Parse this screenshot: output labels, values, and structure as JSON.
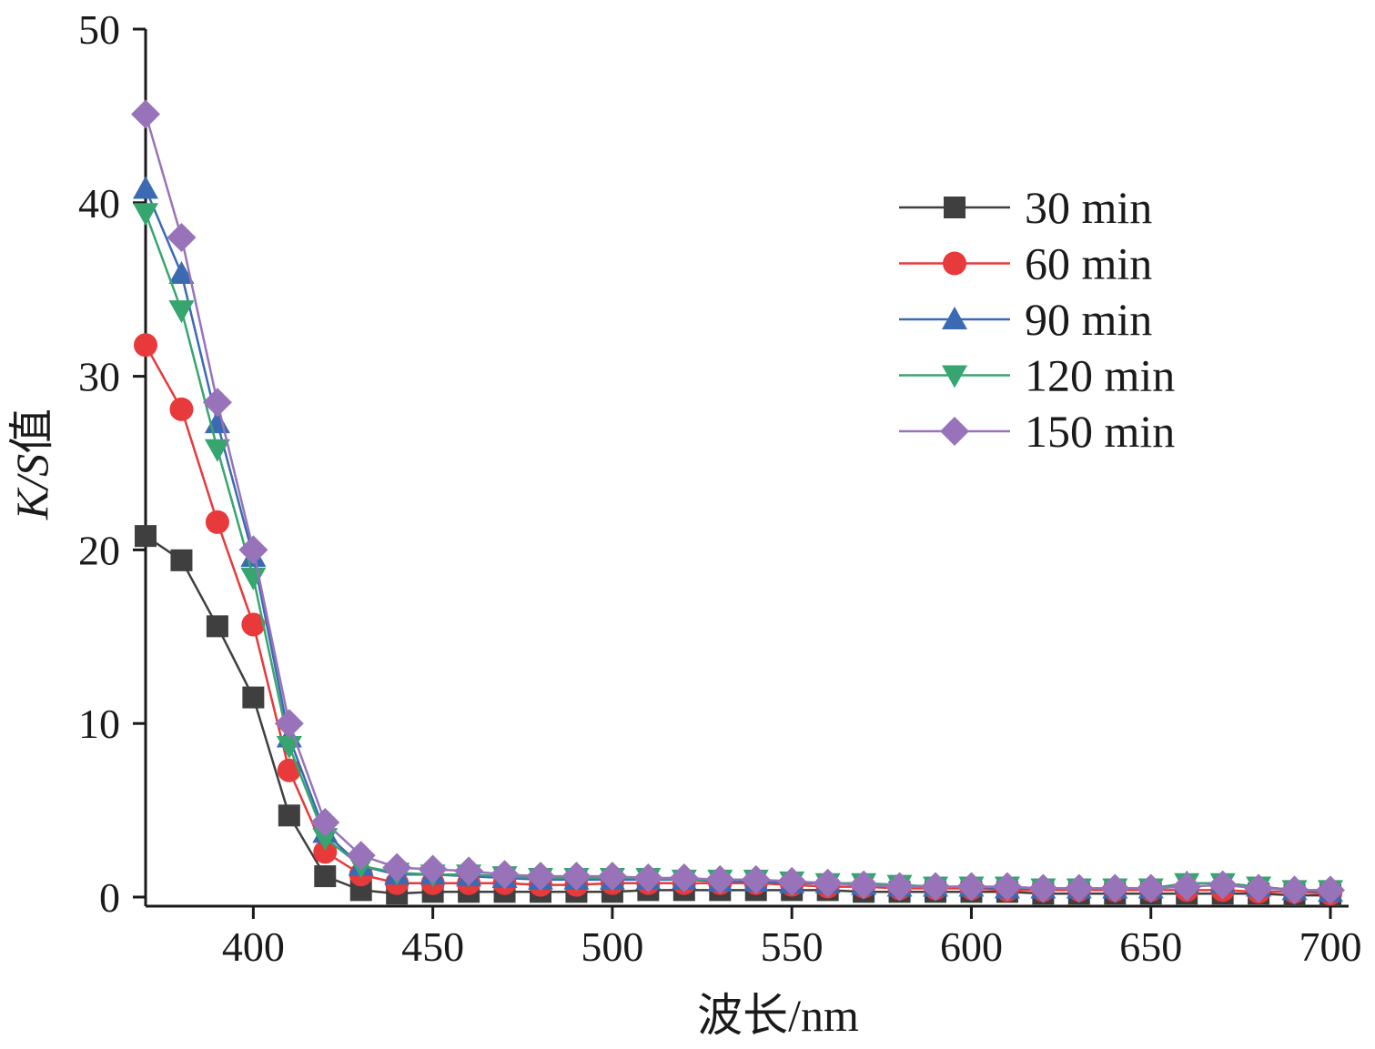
{
  "chart_data": {
    "type": "line",
    "title": "",
    "xlabel": "波长/nm",
    "ylabel_italic": "K/S",
    "ylabel_suffix": "值",
    "xlim": [
      370,
      700
    ],
    "ylim": [
      0,
      50
    ],
    "xticks": [
      400,
      450,
      500,
      550,
      600,
      650,
      700
    ],
    "yticks": [
      0,
      10,
      20,
      30,
      40,
      50
    ],
    "grid": false,
    "legend_position": "top-right",
    "x": [
      370,
      380,
      390,
      400,
      410,
      420,
      430,
      440,
      450,
      460,
      470,
      480,
      490,
      500,
      510,
      520,
      530,
      540,
      550,
      560,
      570,
      580,
      590,
      600,
      610,
      620,
      630,
      640,
      650,
      660,
      670,
      680,
      690,
      700
    ],
    "series": [
      {
        "name": "30 min",
        "color": "#3f3f3f",
        "marker": "square",
        "values": [
          20.8,
          19.4,
          15.6,
          11.5,
          4.7,
          1.2,
          0.4,
          0.2,
          0.3,
          0.3,
          0.3,
          0.3,
          0.3,
          0.3,
          0.4,
          0.4,
          0.4,
          0.4,
          0.4,
          0.4,
          0.3,
          0.3,
          0.3,
          0.3,
          0.3,
          0.2,
          0.2,
          0.2,
          0.2,
          0.2,
          0.2,
          0.2,
          0.1,
          0.1
        ]
      },
      {
        "name": "60 min",
        "color": "#e8393b",
        "marker": "circle",
        "values": [
          31.8,
          28.1,
          21.6,
          15.7,
          7.3,
          2.6,
          1.3,
          0.8,
          0.8,
          0.8,
          0.8,
          0.7,
          0.7,
          0.8,
          0.8,
          0.8,
          0.8,
          0.8,
          0.7,
          0.6,
          0.6,
          0.5,
          0.5,
          0.5,
          0.4,
          0.4,
          0.4,
          0.4,
          0.4,
          0.4,
          0.4,
          0.3,
          0.3,
          0.2
        ]
      },
      {
        "name": "90 min",
        "color": "#3c6ab2",
        "marker": "triangle-up",
        "values": [
          40.8,
          35.9,
          27.3,
          19.6,
          9.2,
          3.7,
          1.8,
          1.3,
          1.3,
          1.2,
          1.1,
          1.0,
          1.0,
          1.0,
          1.0,
          1.0,
          0.9,
          0.9,
          0.8,
          0.8,
          0.7,
          0.6,
          0.6,
          0.6,
          0.5,
          0.5,
          0.5,
          0.5,
          0.5,
          0.8,
          0.8,
          0.6,
          0.4,
          0.3
        ]
      },
      {
        "name": "120 min",
        "color": "#36a56f",
        "marker": "triangle-down",
        "values": [
          39.4,
          33.8,
          25.8,
          18.4,
          8.7,
          3.4,
          1.8,
          1.4,
          1.3,
          1.3,
          1.2,
          1.1,
          1.1,
          1.1,
          1.1,
          1.0,
          1.0,
          1.0,
          0.9,
          0.8,
          0.8,
          0.7,
          0.6,
          0.6,
          0.6,
          0.5,
          0.5,
          0.5,
          0.5,
          0.8,
          0.8,
          0.6,
          0.4,
          0.4
        ]
      },
      {
        "name": "150 min",
        "color": "#9873b9",
        "marker": "diamond",
        "values": [
          45.1,
          38.0,
          28.5,
          20.0,
          10.0,
          4.3,
          2.4,
          1.7,
          1.6,
          1.5,
          1.3,
          1.2,
          1.2,
          1.2,
          1.1,
          1.1,
          1.0,
          1.0,
          0.9,
          0.8,
          0.7,
          0.6,
          0.6,
          0.6,
          0.6,
          0.5,
          0.5,
          0.5,
          0.5,
          0.6,
          0.7,
          0.5,
          0.4,
          0.4
        ]
      }
    ]
  }
}
